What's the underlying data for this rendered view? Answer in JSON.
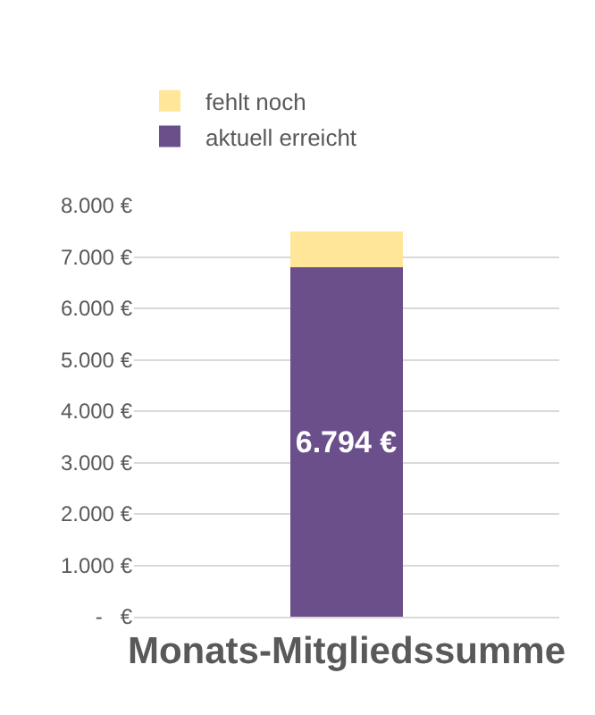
{
  "chart_data": {
    "type": "bar",
    "stacked": true,
    "categories": [
      "Monats-Mitgliedssumme"
    ],
    "series": [
      {
        "name": "aktuell erreicht",
        "color": "#6b4f8b",
        "values": [
          6794
        ],
        "value_labels": [
          "6.794 €"
        ]
      },
      {
        "name": "fehlt noch",
        "color": "#ffe699",
        "values": [
          706
        ]
      }
    ],
    "ylim": [
      0,
      8000
    ],
    "yticks": [
      {
        "value": 0,
        "label": "-   €"
      },
      {
        "value": 1000,
        "label": "1.000 €"
      },
      {
        "value": 2000,
        "label": "2.000 €"
      },
      {
        "value": 3000,
        "label": "3.000 €"
      },
      {
        "value": 4000,
        "label": "4.000 €"
      },
      {
        "value": 5000,
        "label": "5.000 €"
      },
      {
        "value": 6000,
        "label": "6.000 €"
      },
      {
        "value": 7000,
        "label": "7.000 €"
      },
      {
        "value": 8000,
        "label": "8.000 €"
      }
    ],
    "grid": "y",
    "legend": "top left"
  }
}
